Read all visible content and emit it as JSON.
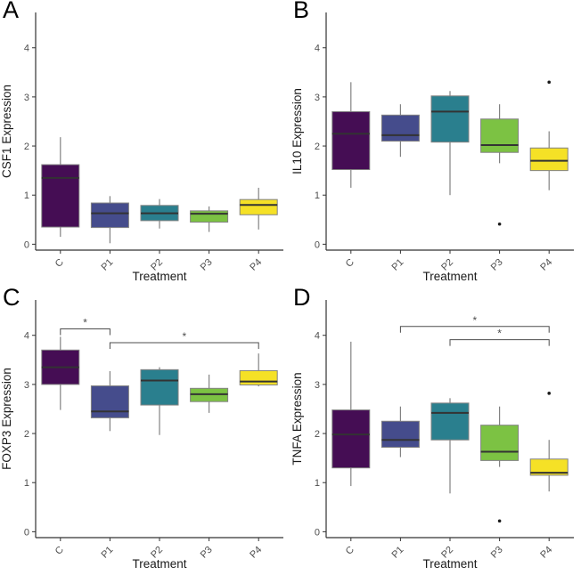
{
  "figure": {
    "background": "#ffffff",
    "layout": "2x2-grid-of-boxplots"
  },
  "style": {
    "box_border": "#828282",
    "whisker_color": "#828282",
    "median_color": "#333333",
    "outlier_color": "#1a1a1a",
    "axis_color": "#333333",
    "tick_label_color": "#4d4d4d",
    "axis_title_color": "#1a1a1a",
    "bracket_color": "#4d4d4d",
    "panel_letter_color": "#000000"
  },
  "chart_data": [
    {
      "type": "box",
      "panel": "A",
      "ylabel": "CSF1 Expression",
      "xlabel": "Treatment",
      "categories": [
        "C",
        "P1",
        "P2",
        "P3",
        "P4"
      ],
      "ylim": [
        -0.12,
        4.72
      ],
      "yticks": [
        0,
        1,
        2,
        3,
        4
      ],
      "grid": false,
      "box_colors": [
        "#450d54",
        "#454c8c",
        "#2a7f8e",
        "#7cc243",
        "#f5e126"
      ],
      "boxes": [
        {
          "whislo": 0.15,
          "q1": 0.35,
          "med": 1.35,
          "q3": 1.62,
          "whishi": 2.18,
          "outliers": []
        },
        {
          "whislo": 0.02,
          "q1": 0.34,
          "med": 0.63,
          "q3": 0.84,
          "whishi": 0.98,
          "outliers": []
        },
        {
          "whislo": 0.32,
          "q1": 0.48,
          "med": 0.63,
          "q3": 0.79,
          "whishi": 0.92,
          "outliers": []
        },
        {
          "whislo": 0.25,
          "q1": 0.45,
          "med": 0.62,
          "q3": 0.68,
          "whishi": 0.77,
          "outliers": []
        },
        {
          "whislo": 0.3,
          "q1": 0.6,
          "med": 0.8,
          "q3": 0.91,
          "whishi": 1.15,
          "outliers": []
        }
      ],
      "significance": []
    },
    {
      "type": "box",
      "panel": "B",
      "ylabel": "IL10 Expression",
      "xlabel": "Treatment",
      "categories": [
        "C",
        "P1",
        "P2",
        "P3",
        "P4"
      ],
      "ylim": [
        -0.12,
        4.72
      ],
      "yticks": [
        0,
        1,
        2,
        3,
        4
      ],
      "grid": false,
      "box_colors": [
        "#450d54",
        "#454c8c",
        "#2a7f8e",
        "#7cc243",
        "#f5e126"
      ],
      "boxes": [
        {
          "whislo": 1.15,
          "q1": 1.52,
          "med": 2.25,
          "q3": 2.7,
          "whishi": 3.3,
          "outliers": []
        },
        {
          "whislo": 1.78,
          "q1": 2.1,
          "med": 2.22,
          "q3": 2.63,
          "whishi": 2.85,
          "outliers": []
        },
        {
          "whislo": 1.0,
          "q1": 2.08,
          "med": 2.7,
          "q3": 3.02,
          "whishi": 3.12,
          "outliers": []
        },
        {
          "whislo": 1.65,
          "q1": 1.87,
          "med": 2.02,
          "q3": 2.55,
          "whishi": 2.85,
          "outliers": [
            0.41
          ]
        },
        {
          "whislo": 1.1,
          "q1": 1.5,
          "med": 1.7,
          "q3": 1.96,
          "whishi": 2.3,
          "outliers": [
            3.3
          ]
        }
      ],
      "significance": []
    },
    {
      "type": "box",
      "panel": "C",
      "ylabel": "FOXP3 Expression",
      "xlabel": "Treatment",
      "categories": [
        "C",
        "P1",
        "P2",
        "P3",
        "P4"
      ],
      "ylim": [
        -0.12,
        4.72
      ],
      "yticks": [
        0,
        1,
        2,
        3,
        4
      ],
      "grid": false,
      "box_colors": [
        "#450d54",
        "#454c8c",
        "#2a7f8e",
        "#7cc243",
        "#f5e126"
      ],
      "boxes": [
        {
          "whislo": 2.48,
          "q1": 3.0,
          "med": 3.35,
          "q3": 3.7,
          "whishi": 3.97,
          "outliers": []
        },
        {
          "whislo": 2.05,
          "q1": 2.32,
          "med": 2.45,
          "q3": 2.97,
          "whishi": 3.27,
          "outliers": []
        },
        {
          "whislo": 1.97,
          "q1": 2.58,
          "med": 3.08,
          "q3": 3.3,
          "whishi": 3.35,
          "outliers": []
        },
        {
          "whislo": 2.42,
          "q1": 2.65,
          "med": 2.8,
          "q3": 2.92,
          "whishi": 3.2,
          "outliers": []
        },
        {
          "whislo": 2.96,
          "q1": 2.99,
          "med": 3.06,
          "q3": 3.28,
          "whishi": 3.63,
          "outliers": []
        }
      ],
      "significance": [
        {
          "a": "C",
          "b": "P1",
          "y": 4.13,
          "label": "*"
        },
        {
          "a": "P1",
          "b": "P4",
          "y": 3.85,
          "label": "*"
        }
      ]
    },
    {
      "type": "box",
      "panel": "D",
      "ylabel": "TNFA Expression",
      "xlabel": "Treatment",
      "categories": [
        "C",
        "P1",
        "P2",
        "P3",
        "P4"
      ],
      "ylim": [
        -0.12,
        4.72
      ],
      "yticks": [
        0,
        1,
        2,
        3,
        4
      ],
      "grid": false,
      "box_colors": [
        "#450d54",
        "#454c8c",
        "#2a7f8e",
        "#7cc243",
        "#f5e126"
      ],
      "boxes": [
        {
          "whislo": 0.93,
          "q1": 1.3,
          "med": 1.98,
          "q3": 2.48,
          "whishi": 3.87,
          "outliers": []
        },
        {
          "whislo": 1.52,
          "q1": 1.72,
          "med": 1.87,
          "q3": 2.25,
          "whishi": 2.55,
          "outliers": []
        },
        {
          "whislo": 0.78,
          "q1": 1.87,
          "med": 2.42,
          "q3": 2.62,
          "whishi": 2.72,
          "outliers": []
        },
        {
          "whislo": 1.32,
          "q1": 1.45,
          "med": 1.63,
          "q3": 2.17,
          "whishi": 2.55,
          "outliers": [
            0.22
          ]
        },
        {
          "whislo": 0.82,
          "q1": 1.15,
          "med": 1.2,
          "q3": 1.48,
          "whishi": 1.87,
          "outliers": [
            2.82
          ]
        }
      ],
      "significance": [
        {
          "a": "P1",
          "b": "P4",
          "y": 4.18,
          "label": "*"
        },
        {
          "a": "P2",
          "b": "P4",
          "y": 3.91,
          "label": "*"
        }
      ]
    }
  ]
}
